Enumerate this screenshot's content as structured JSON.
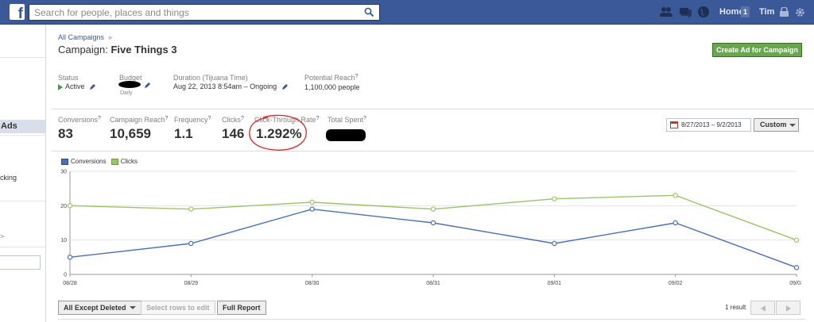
{
  "topbar": {
    "logo": "f",
    "search_placeholder": "Search for people, places and things",
    "home_label": "Home",
    "home_badge": "1",
    "user_name": "Tim"
  },
  "sidebar": {
    "ads_label": "Ads",
    "cut_text_1": "cking",
    "cut_text_2": ">"
  },
  "breadcrumb": {
    "link": "All Campaigns",
    "separator": "»"
  },
  "campaign": {
    "prefix": "Campaign: ",
    "name": "Five Things 3",
    "create_button": "Create Ad for Campaign"
  },
  "details": {
    "status_label": "Status",
    "status_value": "Active",
    "budget_label": "Budget",
    "budget_sub": "Daily",
    "duration_label": "Duration (Tijuana Time)",
    "duration_value": "Aug 22, 2013 8:54am – Ongoing",
    "reach_label": "Potential Reach",
    "reach_value": "1,100,000 people"
  },
  "stats": [
    {
      "label": "Conversions",
      "value": "83"
    },
    {
      "label": "Campaign Reach",
      "value": "10,659"
    },
    {
      "label": "Frequency",
      "value": "1.1"
    },
    {
      "label": "Clicks",
      "value": "146"
    },
    {
      "label": "Click-Through Rate",
      "value": "1.292%"
    },
    {
      "label": "Total Spent",
      "value": ""
    }
  ],
  "date_range": {
    "value": "8/27/2013 – 9/2/2013",
    "custom_label": "Custom"
  },
  "colors": {
    "conversions": "#4a6fb5",
    "clicks": "#9bc46a",
    "annotation": "#d9252a"
  },
  "chart_data": {
    "type": "line",
    "categories": [
      "08/28",
      "08/29",
      "08/30",
      "08/31",
      "09/01",
      "09/02",
      "09/03"
    ],
    "series": [
      {
        "name": "Conversions",
        "values": [
          5,
          9,
          19,
          15,
          9,
          15,
          2
        ]
      },
      {
        "name": "Clicks",
        "values": [
          20,
          19,
          21,
          19,
          22,
          23,
          10
        ]
      }
    ],
    "yticks": [
      0,
      10,
      20,
      30
    ],
    "ylim": [
      0,
      30
    ],
    "grid": true,
    "legend": "top-left"
  },
  "table_controls": {
    "filter_label": "All Except Deleted",
    "select_label": "Select rows to edit",
    "report_label": "Full Report",
    "result_count": "1 result"
  }
}
